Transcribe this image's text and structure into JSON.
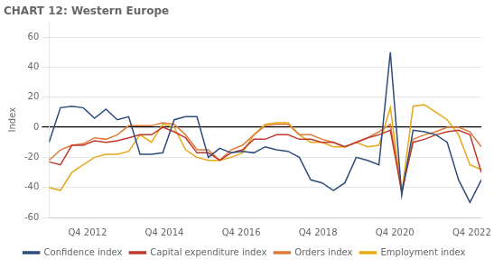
{
  "chart_data": {
    "type": "line",
    "title": "CHART 12: Western Europe",
    "y_label": "Index",
    "x": [
      2011.75,
      2012.046052631579,
      2012.342105263158,
      2012.638157894737,
      2012.934210526316,
      2013.230263157895,
      2013.526315789474,
      2013.822368421053,
      2014.118421052632,
      2014.414473684211,
      2014.710526315789,
      2015.006578947368,
      2015.302631578947,
      2015.598684210526,
      2015.894736842105,
      2016.190789473684,
      2016.486842105263,
      2016.782894736842,
      2017.078947368421,
      2017.375,
      2017.671052631579,
      2017.967105263158,
      2018.263157894737,
      2018.559210526316,
      2018.855263157895,
      2019.151315789474,
      2019.447368421053,
      2019.743421052632,
      2020.039473684211,
      2020.335526315789,
      2020.631578947368,
      2020.927631578947,
      2021.223684210526,
      2021.519736842105,
      2021.815789473684,
      2022.111842105263,
      2022.407894736842,
      2022.703947368421,
      2023.0
    ],
    "series": [
      {
        "name": "Confidence index",
        "color": "#2e4d7b",
        "values": [
          -10,
          13,
          14,
          13,
          6,
          12,
          5,
          7,
          -18,
          -18,
          -17,
          5,
          7,
          7,
          -20,
          -14,
          -17,
          -16,
          -17,
          -13,
          -15,
          -16,
          -20,
          -35,
          -37,
          -42,
          -37,
          -20,
          -22,
          -25,
          50,
          -45,
          -2,
          -3,
          -5,
          -10,
          -35,
          -50,
          -35
        ]
      },
      {
        "name": "Capital expenditure index",
        "color": "#c0392b",
        "values": [
          -23,
          -25,
          -12,
          -12,
          -9,
          -10,
          -9,
          -7,
          -5,
          -5,
          0,
          -3,
          -7,
          -17,
          -17,
          -22,
          -17,
          -15,
          -8,
          -8,
          -5,
          -5,
          -8,
          -8,
          -10,
          -10,
          -13,
          -10,
          -7,
          -5,
          -2,
          -43,
          -10,
          -8,
          -5,
          -3,
          -2,
          -5,
          -30
        ]
      },
      {
        "name": "Orders index",
        "color": "#e07b39",
        "values": [
          -22,
          -15,
          -12,
          -11,
          -7,
          -8,
          -5,
          1,
          1,
          1,
          3,
          2,
          -5,
          -15,
          -15,
          -22,
          -15,
          -12,
          -5,
          1,
          2,
          2,
          -5,
          -5,
          -8,
          -10,
          -13,
          -10,
          -7,
          -3,
          2,
          -43,
          -8,
          -5,
          -3,
          0,
          0,
          -3,
          -13
        ]
      },
      {
        "name": "Employment index",
        "color": "#e6a817",
        "values": [
          -40,
          -42,
          -30,
          -25,
          -20,
          -18,
          -18,
          -16,
          -5,
          -10,
          2,
          0,
          -15,
          -20,
          -22,
          -22,
          -20,
          -17,
          -5,
          2,
          3,
          3,
          -5,
          -10,
          -10,
          -13,
          -13,
          -10,
          -13,
          -12,
          13,
          -44,
          14,
          15,
          10,
          5,
          -5,
          -25,
          -28
        ]
      }
    ],
    "xlim": [
      2011.75,
      2023.0
    ],
    "xticks": [
      {
        "value": 2012.75,
        "label": "Q4 2012"
      },
      {
        "value": 2014.75,
        "label": "Q4 2014"
      },
      {
        "value": 2016.75,
        "label": "Q4 2016"
      },
      {
        "value": 2018.75,
        "label": "Q4 2018"
      },
      {
        "value": 2020.75,
        "label": "Q4 2020"
      },
      {
        "value": 2022.75,
        "label": "Q4 2022"
      }
    ],
    "ylim": [
      -60,
      70
    ],
    "yticks": [
      -60,
      -40,
      -20,
      0,
      20,
      40,
      60
    ],
    "grid": "y",
    "legend": "bottom"
  }
}
